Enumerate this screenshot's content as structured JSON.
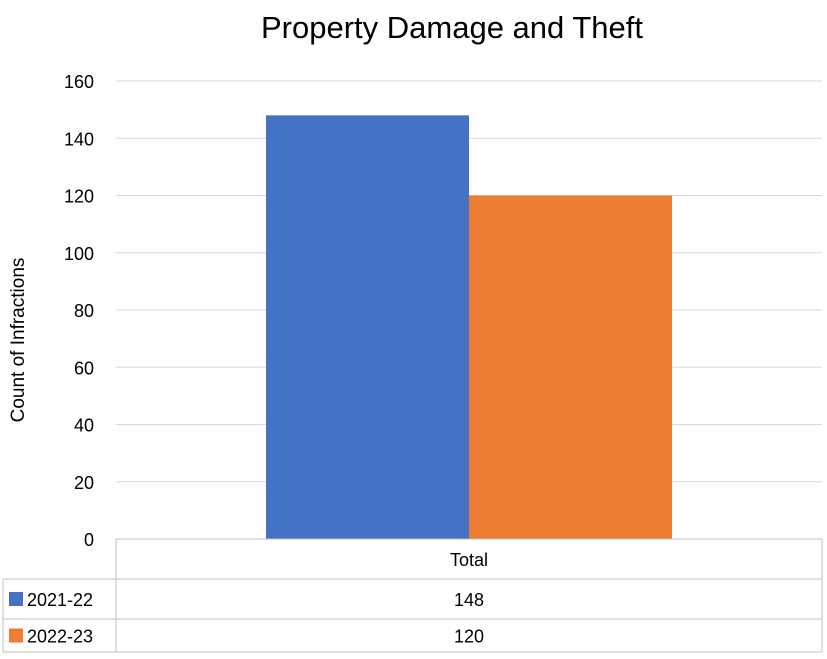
{
  "chart_data": {
    "type": "bar",
    "title": "Property Damage and Theft",
    "ylabel": "Count of Infractions",
    "xlabel": "",
    "categories": [
      "Total"
    ],
    "series": [
      {
        "name": "2021-22",
        "values": [
          148
        ],
        "color": "#4472C4"
      },
      {
        "name": "2022-23",
        "values": [
          120
        ],
        "color": "#ED7D31"
      }
    ],
    "ylim": [
      0,
      160
    ],
    "yticks": [
      0,
      20,
      40,
      60,
      80,
      100,
      120,
      140,
      160
    ],
    "grid": true,
    "legend": "data-table",
    "data_table": true
  },
  "colors": {
    "gridline": "#D9D9D9",
    "table_border": "#BFBFBF",
    "text": "#000000"
  }
}
